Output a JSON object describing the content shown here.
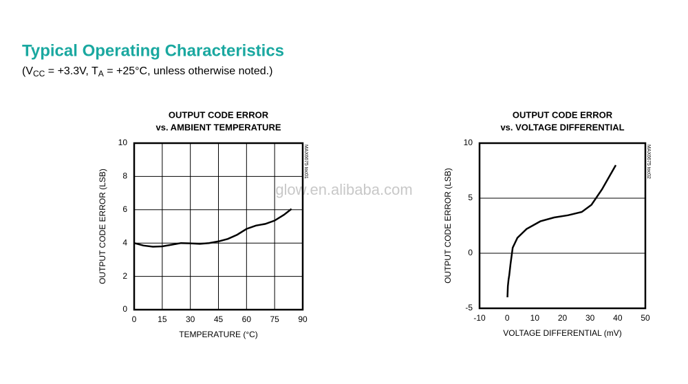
{
  "header": {
    "title": "Typical Operating Characteristics",
    "subtitle_parts": [
      "(V",
      "CC",
      " = +3.3V, T",
      "A",
      " = +25°C, unless otherwise noted.)"
    ],
    "watermark": "glow.en.alibaba.com"
  },
  "chart_data": [
    {
      "type": "line",
      "title": "OUTPUT CODE ERROR",
      "subtitle": "vs. AMBIENT TEMPERATURE",
      "xlabel": "TEMPERATURE (°C)",
      "ylabel": "OUTPUT CODE ERROR (LSB)",
      "annotation": "MAX6675 toc01",
      "x": [
        0,
        5,
        10,
        15,
        20,
        25,
        30,
        35,
        40,
        45,
        50,
        55,
        60,
        65,
        70,
        75,
        80,
        84
      ],
      "values": [
        4.0,
        3.85,
        3.78,
        3.8,
        3.9,
        4.0,
        3.98,
        3.95,
        4.0,
        4.1,
        4.25,
        4.5,
        4.85,
        5.05,
        5.15,
        5.35,
        5.7,
        6.05
      ],
      "color": "#000000",
      "xlim": [
        0,
        90
      ],
      "xticks": [
        0,
        15,
        30,
        45,
        60,
        75,
        90
      ],
      "ylim": [
        0,
        10
      ],
      "yticks": [
        0,
        2,
        4,
        6,
        8,
        10
      ],
      "grid": {
        "x": true,
        "y": true
      }
    },
    {
      "type": "line",
      "title": "OUTPUT CODE ERROR",
      "subtitle": "vs. VOLTAGE DIFFERENTIAL",
      "xlabel": "VOLTAGE DIFFERENTIAL (mV)",
      "ylabel": "OUTPUT CODE ERROR (LSB)",
      "annotation": "MAX6675 toc02",
      "x": [
        0.1,
        0.25,
        0.5,
        0.75,
        1.2,
        2,
        3.7,
        7,
        12,
        17,
        22,
        27,
        30.5,
        34.3,
        39.3
      ],
      "values": [
        -4,
        -3,
        -2.4,
        -2,
        -1,
        0.5,
        1.4,
        2.2,
        2.9,
        3.25,
        3.45,
        3.75,
        4.4,
        5.8,
        8.0
      ],
      "color": "#000000",
      "xlim": [
        -10,
        50
      ],
      "xticks": [
        -10,
        0,
        10,
        20,
        30,
        40,
        50
      ],
      "ylim": [
        -5,
        10
      ],
      "yticks": [
        -5,
        0,
        5,
        10
      ],
      "grid": {
        "x": false,
        "y": true
      }
    }
  ]
}
